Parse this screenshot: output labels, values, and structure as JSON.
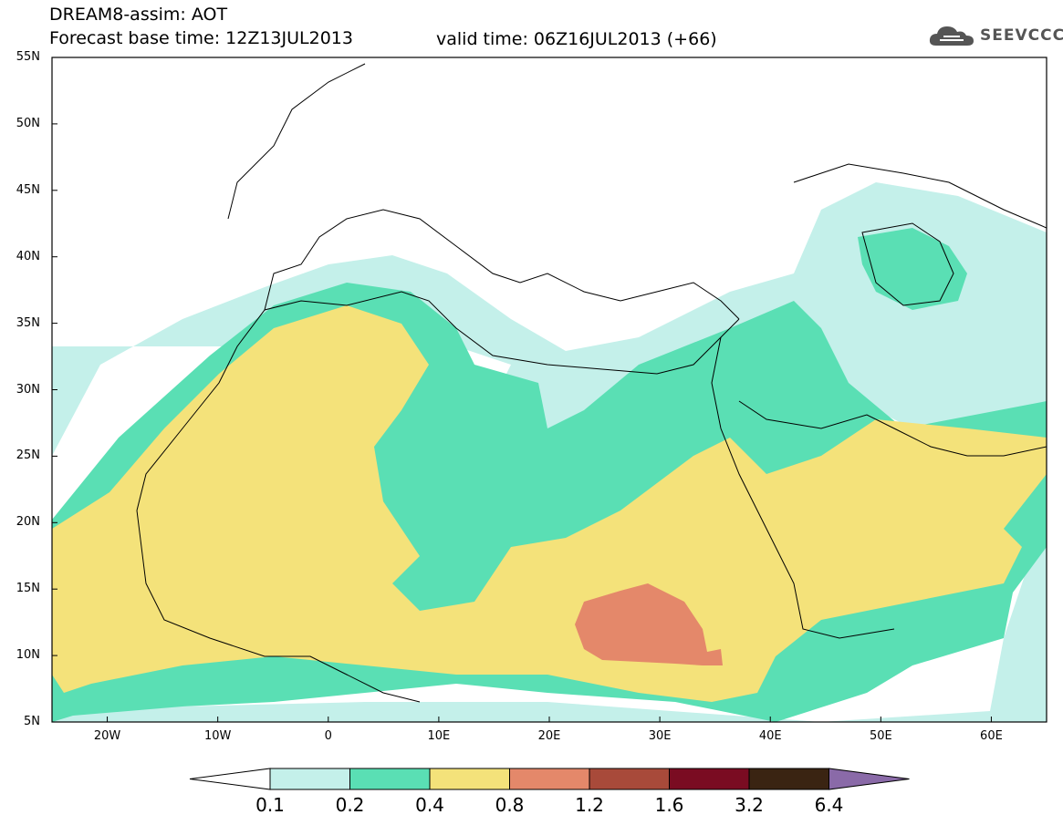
{
  "header": {
    "title": "DREAM8-assim: AOT",
    "base_time": "Forecast base time: 12Z13JUL2013",
    "valid_time": "valid time: 06Z16JUL2013 (+66)"
  },
  "logo": {
    "text": "SEEVCCC",
    "icon": "cloud-icon"
  },
  "map": {
    "lat_labels": [
      "55N",
      "50N",
      "45N",
      "40N",
      "35N",
      "30N",
      "25N",
      "20N",
      "15N",
      "10N",
      "5N"
    ],
    "lon_labels": [
      "20W",
      "10W",
      "0",
      "10E",
      "20E",
      "30E",
      "40E",
      "50E",
      "60E"
    ],
    "lon_range": [
      -25,
      65
    ],
    "lat_range": [
      5,
      55
    ]
  },
  "colorbar": {
    "labels": [
      "0.1",
      "0.2",
      "0.4",
      "0.8",
      "1.2",
      "1.6",
      "3.2",
      "6.4"
    ],
    "colors": [
      "#c4f0ea",
      "#5adfb4",
      "#f4e27a",
      "#e4886a",
      "#a84a3a",
      "#7a0c22",
      "#3a2412",
      "#8a6aa8"
    ],
    "under_color": "#ffffff"
  }
}
